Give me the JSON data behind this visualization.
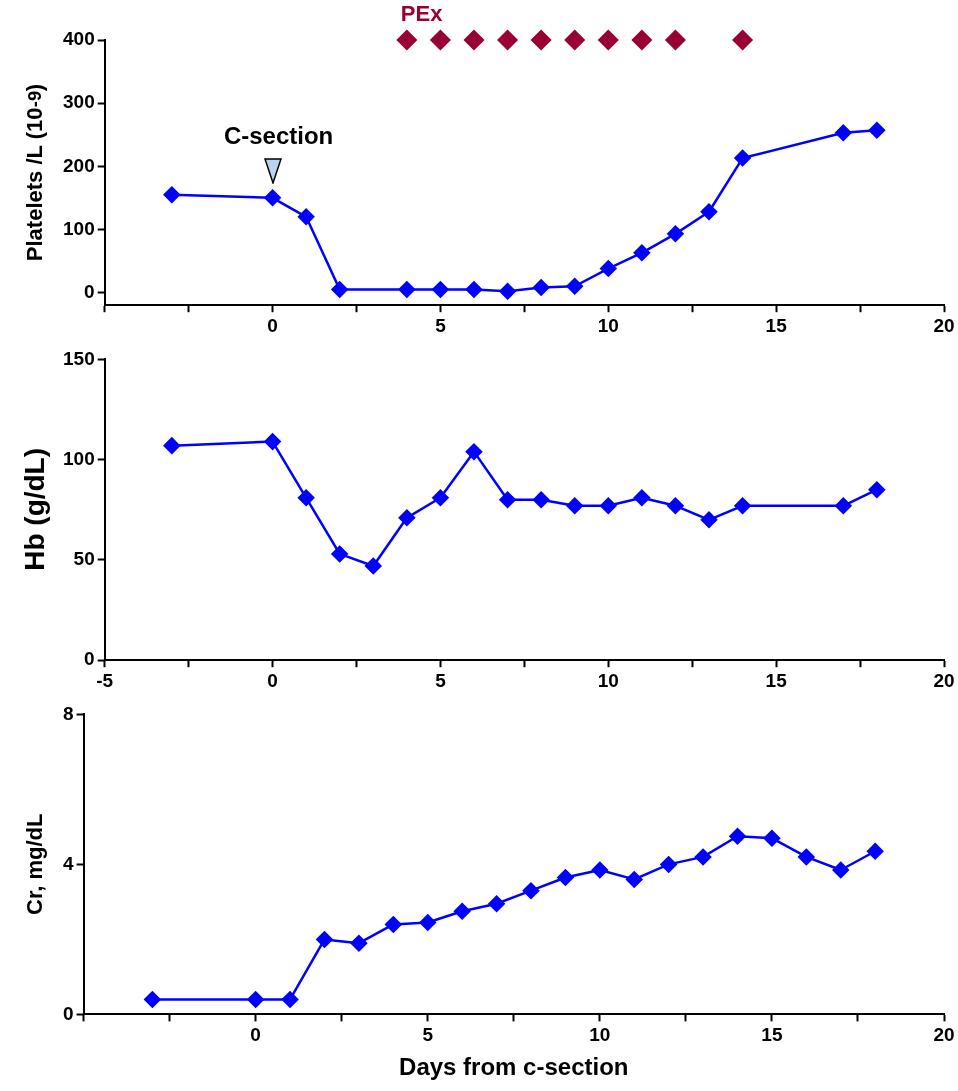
{
  "chart_data": [
    {
      "type": "line",
      "ylabel": "Platelets /L (10$^{-9}$)",
      "xlim": [
        -5,
        20
      ],
      "xticks": [
        {
          "value": -5,
          "label": null
        },
        {
          "value": -2.5,
          "label": null
        },
        0,
        {
          "value": 2.5,
          "label": null
        },
        5,
        {
          "value": 7.5,
          "label": null
        },
        10,
        {
          "value": 12.5,
          "label": null
        },
        15,
        {
          "value": 17.5,
          "label": null
        },
        20
      ],
      "ylim": [
        -20,
        400
      ],
      "yticks": [
        0,
        100,
        200,
        300,
        400
      ],
      "marker": "diamond",
      "annotations": [
        {
          "text": "C-section",
          "x": 0,
          "y": 150
        }
      ],
      "series": [
        {
          "color": "#0000ff",
          "x": [
            -3,
            0,
            1,
            2,
            4,
            5,
            6,
            7,
            8,
            9,
            10,
            11,
            12,
            13,
            14,
            17,
            18
          ],
          "values": [
            155,
            150,
            120,
            5,
            5,
            5,
            5,
            2,
            8,
            10,
            38,
            63,
            93,
            128,
            213,
            253,
            257
          ]
        },
        {
          "type": "scatter",
          "name": "PEx",
          "color": "#990033",
          "x": [
            4,
            5,
            6,
            7,
            8,
            9,
            10,
            11,
            12,
            14
          ],
          "values": [
            400,
            400,
            400,
            400,
            400,
            400,
            400,
            400,
            400,
            400
          ]
        }
      ]
    },
    {
      "type": "line",
      "ylabel": "Hb (g/dL)",
      "xlim": [
        -5,
        20
      ],
      "xticks": [
        -5,
        {
          "value": -2.5,
          "label": null
        },
        0,
        {
          "value": 2.5,
          "label": null
        },
        5,
        {
          "value": 7.5,
          "label": null
        },
        10,
        {
          "value": 12.5,
          "label": null
        },
        15,
        {
          "value": 17.5,
          "label": null
        },
        20
      ],
      "ylim": [
        0,
        150
      ],
      "yticks": [
        0,
        50,
        100,
        150
      ],
      "marker": "diamond",
      "series": [
        {
          "color": "#0000ff",
          "x": [
            -3,
            0,
            1,
            2,
            3,
            4,
            5,
            6,
            7,
            8,
            9,
            10,
            11,
            12,
            13,
            14,
            17,
            18
          ],
          "values": [
            107,
            109,
            81,
            53,
            47,
            71,
            81,
            104,
            80,
            80,
            77,
            77,
            81,
            77,
            70,
            77,
            77,
            85
          ]
        }
      ]
    },
    {
      "type": "line",
      "ylabel": "Cr, mg/dL",
      "xlabel": "Days from c-section",
      "xlim": [
        -5,
        20
      ],
      "xticks": [
        {
          "value": -5,
          "label": null
        },
        {
          "value": -2.5,
          "label": null
        },
        0,
        {
          "value": 2.5,
          "label": null
        },
        5,
        {
          "value": 7.5,
          "label": null
        },
        10,
        {
          "value": 12.5,
          "label": null
        },
        15,
        {
          "value": 17.5,
          "label": null
        },
        20
      ],
      "ylim": [
        0,
        8
      ],
      "yticks": [
        0,
        4,
        8
      ],
      "marker": "diamond",
      "series": [
        {
          "color": "#0000ff",
          "x": [
            -3,
            0,
            1,
            2,
            3,
            4,
            5,
            6,
            7,
            8,
            9,
            10,
            11,
            12,
            13,
            14,
            15,
            16,
            17,
            18
          ],
          "values": [
            0.4,
            0.4,
            0.4,
            2.0,
            1.9,
            2.4,
            2.45,
            2.75,
            2.95,
            3.3,
            3.65,
            3.85,
            3.6,
            4.0,
            4.2,
            4.75,
            4.7,
            4.2,
            3.85,
            4.35
          ]
        }
      ]
    }
  ]
}
